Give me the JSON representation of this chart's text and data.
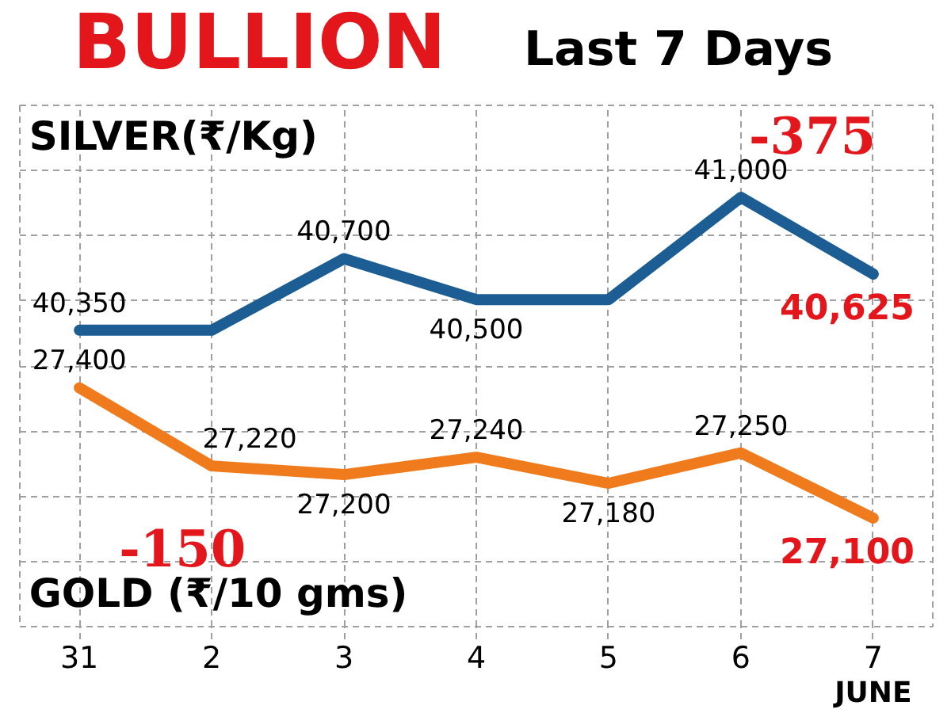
{
  "chart_data": {
    "type": "line",
    "title": "BULLION",
    "subtitle": "Last 7 Days",
    "xlabel": "JUNE",
    "categories": [
      "31",
      "2",
      "3",
      "4",
      "5",
      "6",
      "7"
    ],
    "series": [
      {
        "name": "SILVER(₹/Kg)",
        "color": "#1c5d94",
        "axis": "y2",
        "values": [
          40350,
          40350,
          40700,
          40500,
          40500,
          41000,
          40625
        ],
        "value_labels": [
          "40,350",
          null,
          "40,700",
          "40,500",
          null,
          "41,000",
          "40,625"
        ]
      },
      {
        "name": "GOLD (₹/10 gms)",
        "color": "#f07b1d",
        "values": [
          27400,
          27220,
          27200,
          27240,
          27180,
          27250,
          27100
        ],
        "value_labels": [
          "27,400",
          "27,220",
          "27,200",
          "27,240",
          "27,180",
          "27,250",
          "27,100"
        ]
      }
    ],
    "ylim": [
      26850,
      28050
    ],
    "yticks": [
      {
        "value": 26850,
        "label": null
      },
      {
        "value": 27000,
        "label": null
      },
      {
        "value": 27150,
        "label": null
      },
      {
        "value": 27300,
        "label": null
      },
      {
        "value": 27450,
        "label": null
      },
      {
        "value": 27600,
        "label": null
      },
      {
        "value": 27750,
        "label": null
      },
      {
        "value": 27900,
        "label": null
      },
      {
        "value": 28050,
        "label": null
      }
    ],
    "y2lim": [
      38900,
      41450
    ],
    "annotations": [
      "-375",
      "-150"
    ],
    "grid": true,
    "tick_labels": "x",
    "line_style": "solid"
  }
}
